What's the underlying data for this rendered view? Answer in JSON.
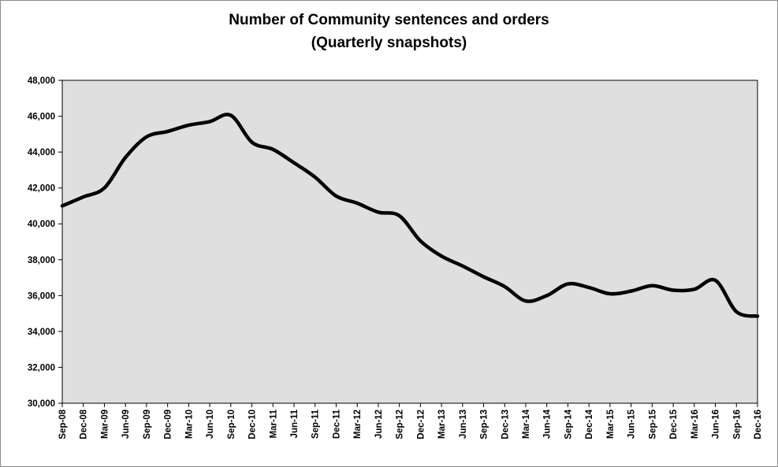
{
  "chart_data": {
    "type": "line",
    "title": "Number of Community sentences and orders",
    "subtitle": "(Quarterly snapshots)",
    "xlabel": "",
    "ylabel": "",
    "ylim": [
      30000,
      48000
    ],
    "y_ticks": [
      30000,
      32000,
      34000,
      36000,
      38000,
      40000,
      42000,
      44000,
      46000,
      48000
    ],
    "y_tick_labels": [
      "30,000",
      "32,000",
      "34,000",
      "36,000",
      "38,000",
      "40,000",
      "42,000",
      "44,000",
      "46,000",
      "48,000"
    ],
    "grid": false,
    "legend": "none",
    "plot_background": "#dfdfdf",
    "line_color": "#000000",
    "categories": [
      "Sep-08",
      "Dec-08",
      "Mar-09",
      "Jun-09",
      "Sep-09",
      "Dec-09",
      "Mar-10",
      "Jun-10",
      "Sep-10",
      "Dec-10",
      "Mar-11",
      "Jun-11",
      "Sep-11",
      "Dec-11",
      "Mar-12",
      "Jun-12",
      "Sep-12",
      "Dec-12",
      "Mar-13",
      "Jun-13",
      "Sep-13",
      "Dec-13",
      "Mar-14",
      "Jun-14",
      "Sep-14",
      "Dec-14",
      "Mar-15",
      "Jun-15",
      "Sep-15",
      "Dec-15",
      "Mar-16",
      "Jun-16",
      "Sep-16",
      "Dec-16"
    ],
    "series": [
      {
        "values": [
          41000,
          41500,
          42000,
          43700,
          44850,
          45150,
          45500,
          45700,
          46050,
          44550,
          44150,
          43400,
          42600,
          41550,
          41150,
          40650,
          40450,
          39050,
          38200,
          37650,
          37050,
          36500,
          35700,
          36000,
          36650,
          36450,
          36100,
          36250,
          36550,
          36300,
          36350,
          36850,
          35100,
          34850
        ]
      }
    ]
  }
}
